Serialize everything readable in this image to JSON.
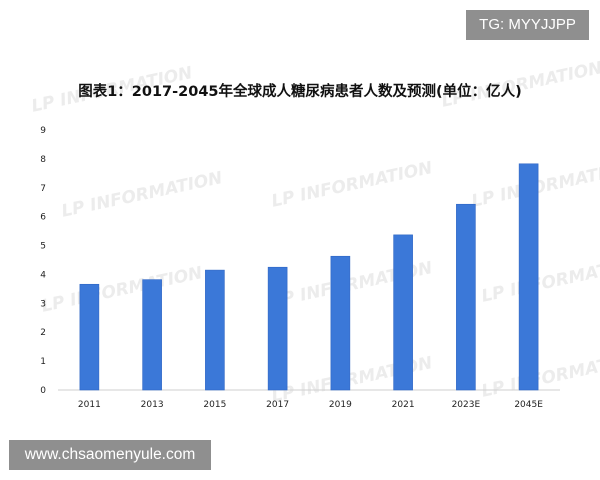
{
  "corner_tag": "TG: MYYJJPP",
  "footer_url": "www.chsaomenyule.com",
  "watermark_text": "LP INFORMATION",
  "colors": {
    "bar": "#3b78d8",
    "bar_edge": "#2f66c4",
    "axis": "#cfcfcf",
    "overlay": "#8f8f8f"
  },
  "chart_data": {
    "type": "bar",
    "title": "图表1：2017-2045年全球成人糖尿病患者人数及预测(单位：亿人)",
    "categories": [
      "2011",
      "2013",
      "2015",
      "2017",
      "2019",
      "2021",
      "2023E",
      "2045E"
    ],
    "values": [
      3.66,
      3.82,
      4.15,
      4.25,
      4.63,
      5.37,
      6.43,
      7.83
    ],
    "ylim": [
      0,
      9
    ],
    "yticks": [
      "0",
      "1",
      "2",
      "3",
      "4",
      "5",
      "6",
      "7",
      "8",
      "9"
    ],
    "grid": false
  }
}
